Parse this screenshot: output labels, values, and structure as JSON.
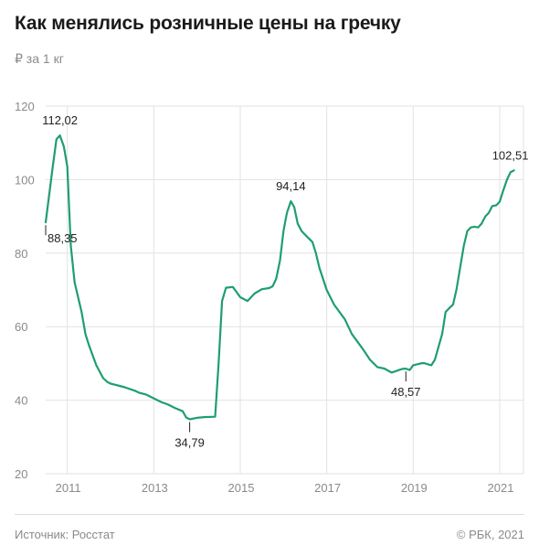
{
  "header": {
    "title": "Как менялись розничные цены на гречку",
    "subtitle": "₽ за 1 кг"
  },
  "footer": {
    "source": "Источник: Росстат",
    "copyright": "© РБК, 2021"
  },
  "colors": {
    "line": "#1f9e6e",
    "grid": "#e2e2e2",
    "text": "#222222",
    "muted": "#8a8a8a"
  },
  "chart_data": {
    "type": "line",
    "title": "Как менялись розничные цены на гречку",
    "ylabel": "₽ за 1 кг",
    "ylim": [
      20,
      120
    ],
    "yticks": [
      20,
      40,
      60,
      80,
      100,
      120
    ],
    "xlim": [
      2010.5,
      2021.55
    ],
    "xticks": [
      {
        "value": 2011,
        "label": "2011"
      },
      {
        "value": 2013,
        "label": "2013"
      },
      {
        "value": 2015,
        "label": "2015"
      },
      {
        "value": 2017,
        "label": "2017"
      },
      {
        "value": 2019,
        "label": "2019"
      },
      {
        "value": 2021,
        "label": "2021"
      }
    ],
    "grid": true,
    "series": [
      {
        "x": [
          2010.5,
          2010.67,
          2010.75,
          2010.83,
          2010.92,
          2011.0,
          2011.08,
          2011.17,
          2011.25,
          2011.33,
          2011.42,
          2011.5,
          2011.67,
          2011.83,
          2011.92,
          2012.0,
          2012.17,
          2012.33,
          2012.58,
          2012.67,
          2012.83,
          2013.0,
          2013.17,
          2013.33,
          2013.5,
          2013.67,
          2013.75,
          2013.83,
          2014.0,
          2014.17,
          2014.42,
          2014.5,
          2014.58,
          2014.67,
          2014.83,
          2015.0,
          2015.17,
          2015.33,
          2015.5,
          2015.67,
          2015.75,
          2015.83,
          2015.92,
          2016.0,
          2016.08,
          2016.17,
          2016.25,
          2016.33,
          2016.42,
          2016.5,
          2016.67,
          2016.75,
          2016.83,
          2017.0,
          2017.17,
          2017.42,
          2017.58,
          2017.83,
          2018.0,
          2018.17,
          2018.33,
          2018.5,
          2018.58,
          2018.67,
          2018.75,
          2018.83,
          2018.92,
          2019.0,
          2019.17,
          2019.25,
          2019.33,
          2019.42,
          2019.5,
          2019.67,
          2019.75,
          2019.83,
          2019.92,
          2020.0,
          2020.17,
          2020.25,
          2020.33,
          2020.42,
          2020.5,
          2020.58,
          2020.67,
          2020.75,
          2020.83,
          2020.92,
          2021.0,
          2021.08,
          2021.17,
          2021.25,
          2021.33
        ],
        "values": [
          88.35,
          104,
          111,
          112.02,
          109,
          103.5,
          82,
          72,
          68,
          64,
          58,
          55,
          49.5,
          46,
          45,
          44.5,
          44,
          43.5,
          42.5,
          42,
          41.5,
          40.5,
          39.5,
          38.8,
          37.8,
          37,
          35.3,
          34.79,
          35.2,
          35.4,
          35.5,
          50,
          67,
          70.6,
          70.8,
          68,
          67,
          69,
          70.2,
          70.5,
          71,
          73,
          78,
          86,
          91,
          94.14,
          92.5,
          88,
          86,
          85,
          83,
          80,
          76,
          70,
          66,
          62,
          58,
          54,
          51,
          49,
          48.6,
          47.5,
          47.8,
          48.2,
          48.5,
          48.57,
          48.2,
          49.5,
          50,
          50.1,
          49.8,
          49.5,
          51,
          58,
          64,
          65,
          66,
          70,
          82,
          86,
          87,
          87.2,
          87,
          88,
          90,
          91,
          92.8,
          93,
          94,
          97,
          100,
          102,
          102.51
        ]
      }
    ],
    "annotations": [
      {
        "x": 2010.5,
        "y": 88.35,
        "label": "88,35",
        "pos": "below"
      },
      {
        "x": 2010.83,
        "y": 112.02,
        "label": "112,02",
        "pos": "above"
      },
      {
        "x": 2013.83,
        "y": 34.79,
        "label": "34,79",
        "pos": "below"
      },
      {
        "x": 2016.17,
        "y": 94.14,
        "label": "94,14",
        "pos": "above"
      },
      {
        "x": 2018.83,
        "y": 48.57,
        "label": "48,57",
        "pos": "below"
      },
      {
        "x": 2021.33,
        "y": 102.51,
        "label": "102,51",
        "pos": "above"
      }
    ]
  }
}
